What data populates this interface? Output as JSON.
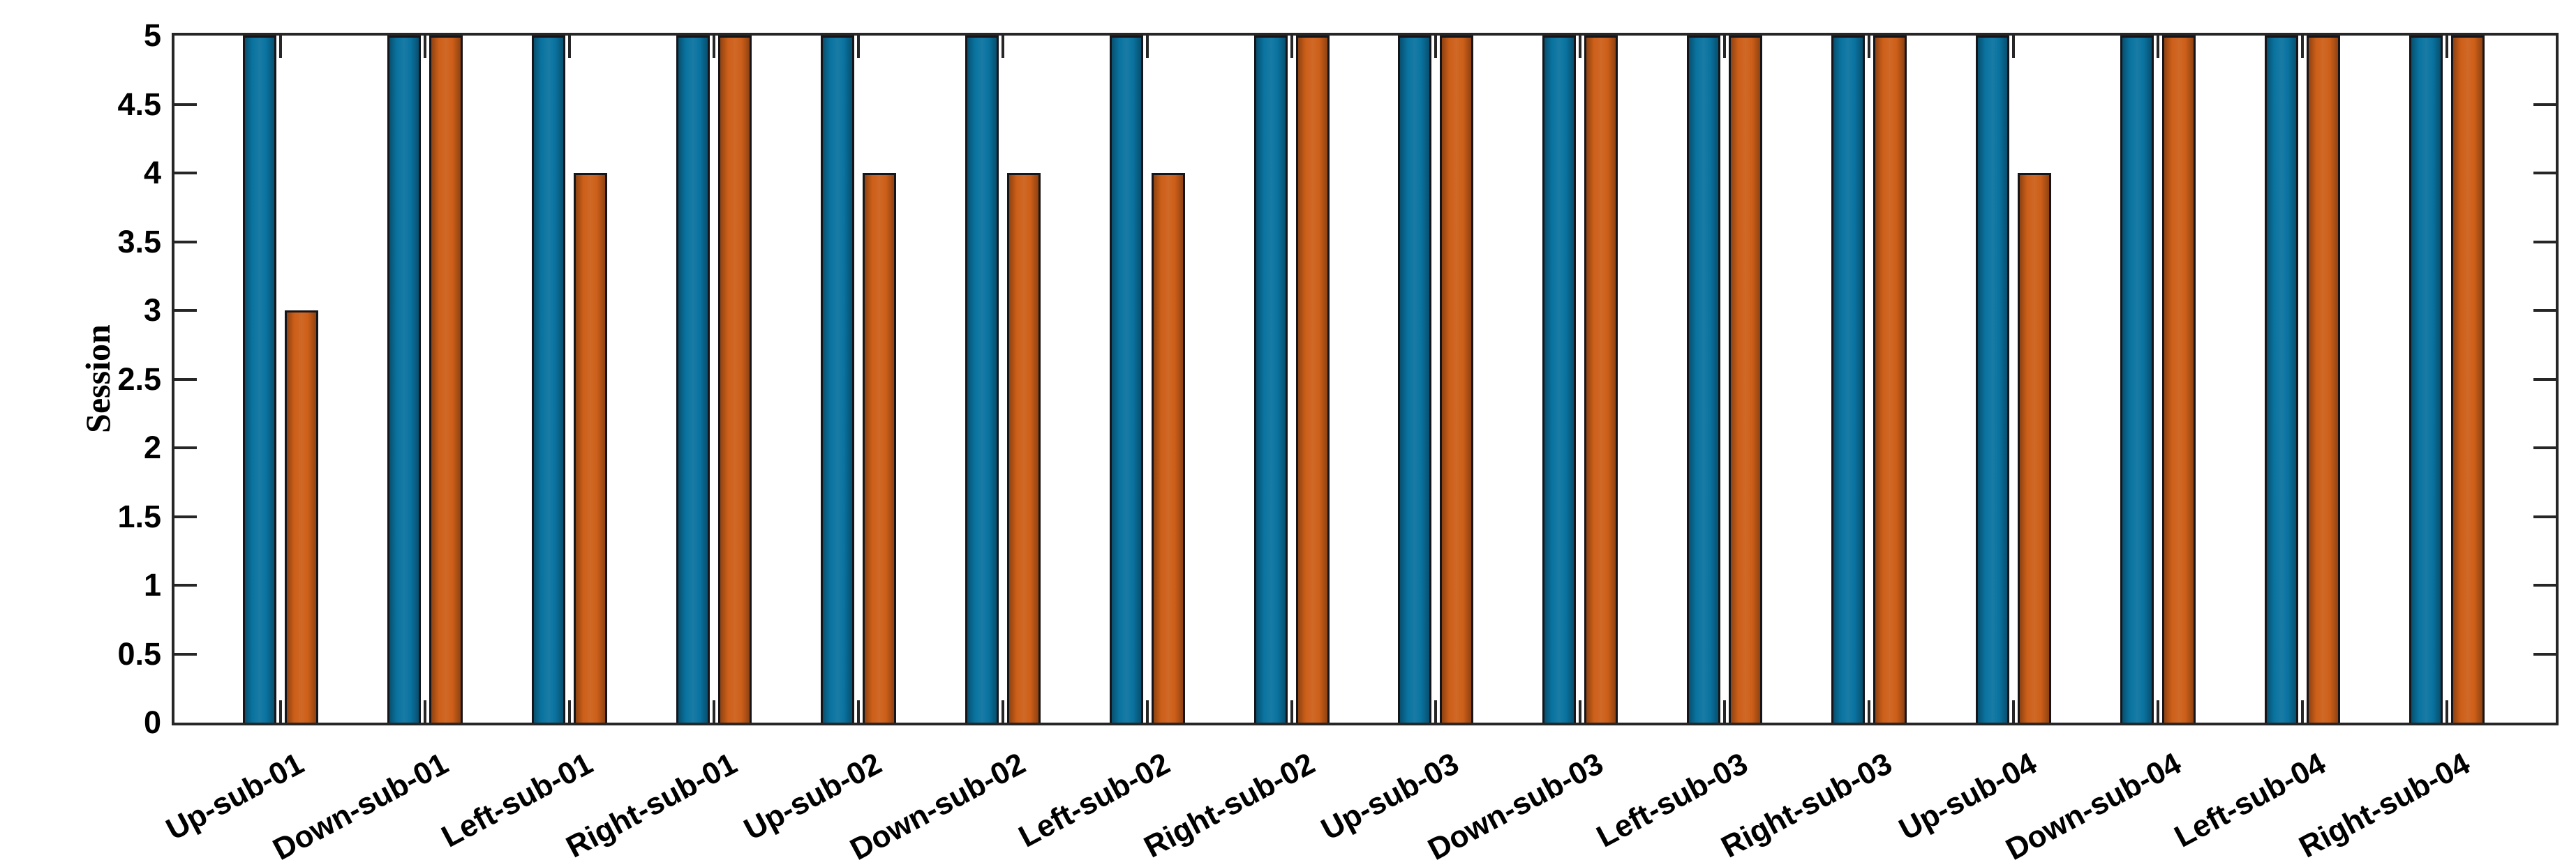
{
  "chart_data": {
    "type": "bar",
    "title": "",
    "xlabel": "",
    "ylabel": "Session",
    "ylim": [
      0,
      5
    ],
    "yticks": [
      0,
      0.5,
      1,
      1.5,
      2,
      2.5,
      3,
      3.5,
      4,
      4.5,
      5
    ],
    "ytick_labels": [
      "0",
      "0.5",
      "1",
      "1.5",
      "2",
      "2.5",
      "3",
      "3.5",
      "4",
      "4.5",
      "5"
    ],
    "grid": false,
    "box": true,
    "legend_position": "none",
    "categories": [
      "Up-sub-01",
      "Down-sub-01",
      "Left-sub-01",
      "Right-sub-01",
      "Up-sub-02",
      "Down-sub-02",
      "Left-sub-02",
      "Right-sub-02",
      "Up-sub-03",
      "Down-sub-03",
      "Left-sub-03",
      "Right-sub-03",
      "Up-sub-04",
      "Down-sub-04",
      "Left-sub-04",
      "Right-sub-04"
    ],
    "series": [
      {
        "name": "blue",
        "color": "#0a73a0",
        "values": [
          5,
          5,
          5,
          5,
          5,
          5,
          5,
          5,
          5,
          5,
          5,
          5,
          5,
          5,
          5,
          5
        ]
      },
      {
        "name": "orange",
        "color": "#cd5f19",
        "values": [
          3,
          5,
          4,
          5,
          4,
          4,
          4,
          5,
          5,
          5,
          5,
          5,
          4,
          5,
          5,
          5
        ]
      }
    ],
    "colors": {
      "axis": "#262626",
      "text": "#000000",
      "bar_edge": "#15151a",
      "background": "#ffffff"
    }
  }
}
